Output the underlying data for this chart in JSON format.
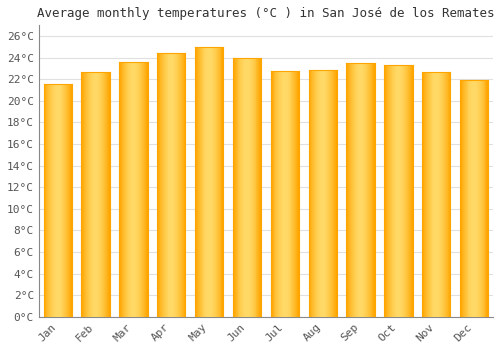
{
  "title": "Average monthly temperatures (°C ) in San José de los Remates",
  "months": [
    "Jan",
    "Feb",
    "Mar",
    "Apr",
    "May",
    "Jun",
    "Jul",
    "Aug",
    "Sep",
    "Oct",
    "Nov",
    "Dec"
  ],
  "temperatures": [
    21.6,
    22.7,
    23.6,
    24.4,
    25.0,
    24.0,
    22.8,
    22.9,
    23.5,
    23.3,
    22.7,
    21.9
  ],
  "bar_color_center": "#FFD966",
  "bar_color_edge": "#FFA500",
  "ylim": [
    0,
    27
  ],
  "ytick_step": 2,
  "background_color": "#ffffff",
  "plot_bg_color": "#ffffff",
  "grid_color": "#e0e0e0",
  "title_fontsize": 9,
  "tick_fontsize": 8,
  "bar_width": 0.75,
  "spine_color": "#888888"
}
